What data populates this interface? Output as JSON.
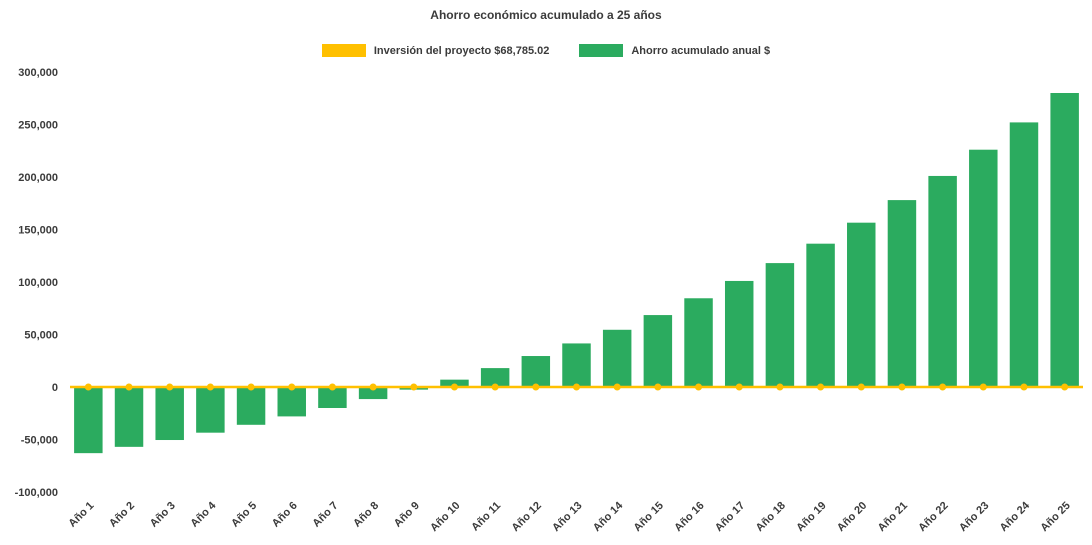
{
  "chart_data": {
    "type": "bar",
    "title": "Ahorro económico acumulado a 25 años",
    "categories": [
      "Año 1",
      "Año 2",
      "Año 3",
      "Año 4",
      "Año 5",
      "Año 6",
      "Año 7",
      "Año 8",
      "Año 9",
      "Año 10",
      "Año 11",
      "Año 12",
      "Año 13",
      "Año 14",
      "Año 15",
      "Año 16",
      "Año 17",
      "Año 18",
      "Año 19",
      "Año 20",
      "Año 21",
      "Año 22",
      "Año 23",
      "Año 24",
      "Año 25"
    ],
    "series": [
      {
        "name": "Inversión del proyecto $68,785.02",
        "type": "line",
        "color": "#FFC000",
        "values": [
          0,
          0,
          0,
          0,
          0,
          0,
          0,
          0,
          0,
          0,
          0,
          0,
          0,
          0,
          0,
          0,
          0,
          0,
          0,
          0,
          0,
          0,
          0,
          0,
          0
        ]
      },
      {
        "name": "Ahorro acumulado anual $",
        "type": "bar",
        "color": "#2BAB5F",
        "values": [
          -63000,
          -57000,
          -50500,
          -43500,
          -36000,
          -28000,
          -20000,
          -11500,
          -2500,
          7000,
          18000,
          29500,
          41500,
          54500,
          68500,
          84500,
          101000,
          118000,
          136500,
          156500,
          178000,
          201000,
          226000,
          252000,
          280000
        ]
      }
    ],
    "ylim": [
      -100000,
      300000
    ],
    "ytick_step": 50000,
    "ytick_labels": [
      "-100,000",
      "-50,000",
      "0",
      "50,000",
      "100,000",
      "150,000",
      "200,000",
      "250,000",
      "300,000"
    ],
    "grid": false,
    "legend_position": "top",
    "xlabel": "",
    "ylabel": ""
  }
}
